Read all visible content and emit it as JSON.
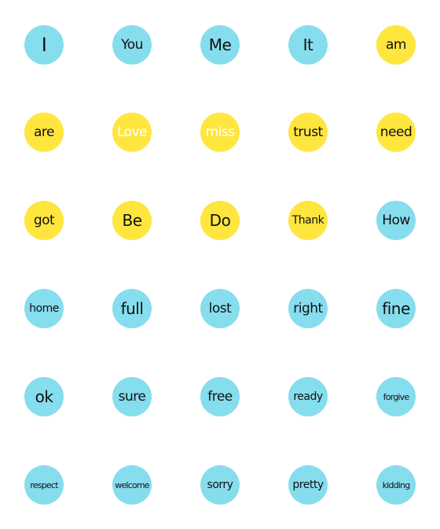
{
  "colors": {
    "blue": "#86DDEE",
    "yellow": "#FFE63F",
    "text_dark": "#111111",
    "text_light": "#FFFFFF"
  },
  "stickers": [
    {
      "label": "I",
      "color": "blue"
    },
    {
      "label": "You",
      "color": "blue"
    },
    {
      "label": "Me",
      "color": "blue"
    },
    {
      "label": "It",
      "color": "blue"
    },
    {
      "label": "am",
      "color": "yellow"
    },
    {
      "label": "are",
      "color": "yellow"
    },
    {
      "label": "Love",
      "color": "yellow",
      "text_color": "light"
    },
    {
      "label": "miss",
      "color": "yellow",
      "text_color": "light"
    },
    {
      "label": "trust",
      "color": "yellow"
    },
    {
      "label": "need",
      "color": "yellow"
    },
    {
      "label": "got",
      "color": "yellow"
    },
    {
      "label": "Be",
      "color": "yellow"
    },
    {
      "label": "Do",
      "color": "yellow"
    },
    {
      "label": "Thank",
      "color": "yellow"
    },
    {
      "label": "How",
      "color": "blue"
    },
    {
      "label": "home",
      "color": "blue"
    },
    {
      "label": "full",
      "color": "blue"
    },
    {
      "label": "lost",
      "color": "blue"
    },
    {
      "label": "right",
      "color": "blue"
    },
    {
      "label": "fine",
      "color": "blue"
    },
    {
      "label": "ok",
      "color": "blue"
    },
    {
      "label": "sure",
      "color": "blue"
    },
    {
      "label": "free",
      "color": "blue"
    },
    {
      "label": "ready",
      "color": "blue"
    },
    {
      "label": "forgive",
      "color": "blue"
    },
    {
      "label": "respect",
      "color": "blue"
    },
    {
      "label": "welcome",
      "color": "blue"
    },
    {
      "label": "sorry",
      "color": "blue"
    },
    {
      "label": "pretty",
      "color": "blue"
    },
    {
      "label": "kidding",
      "color": "blue"
    }
  ]
}
